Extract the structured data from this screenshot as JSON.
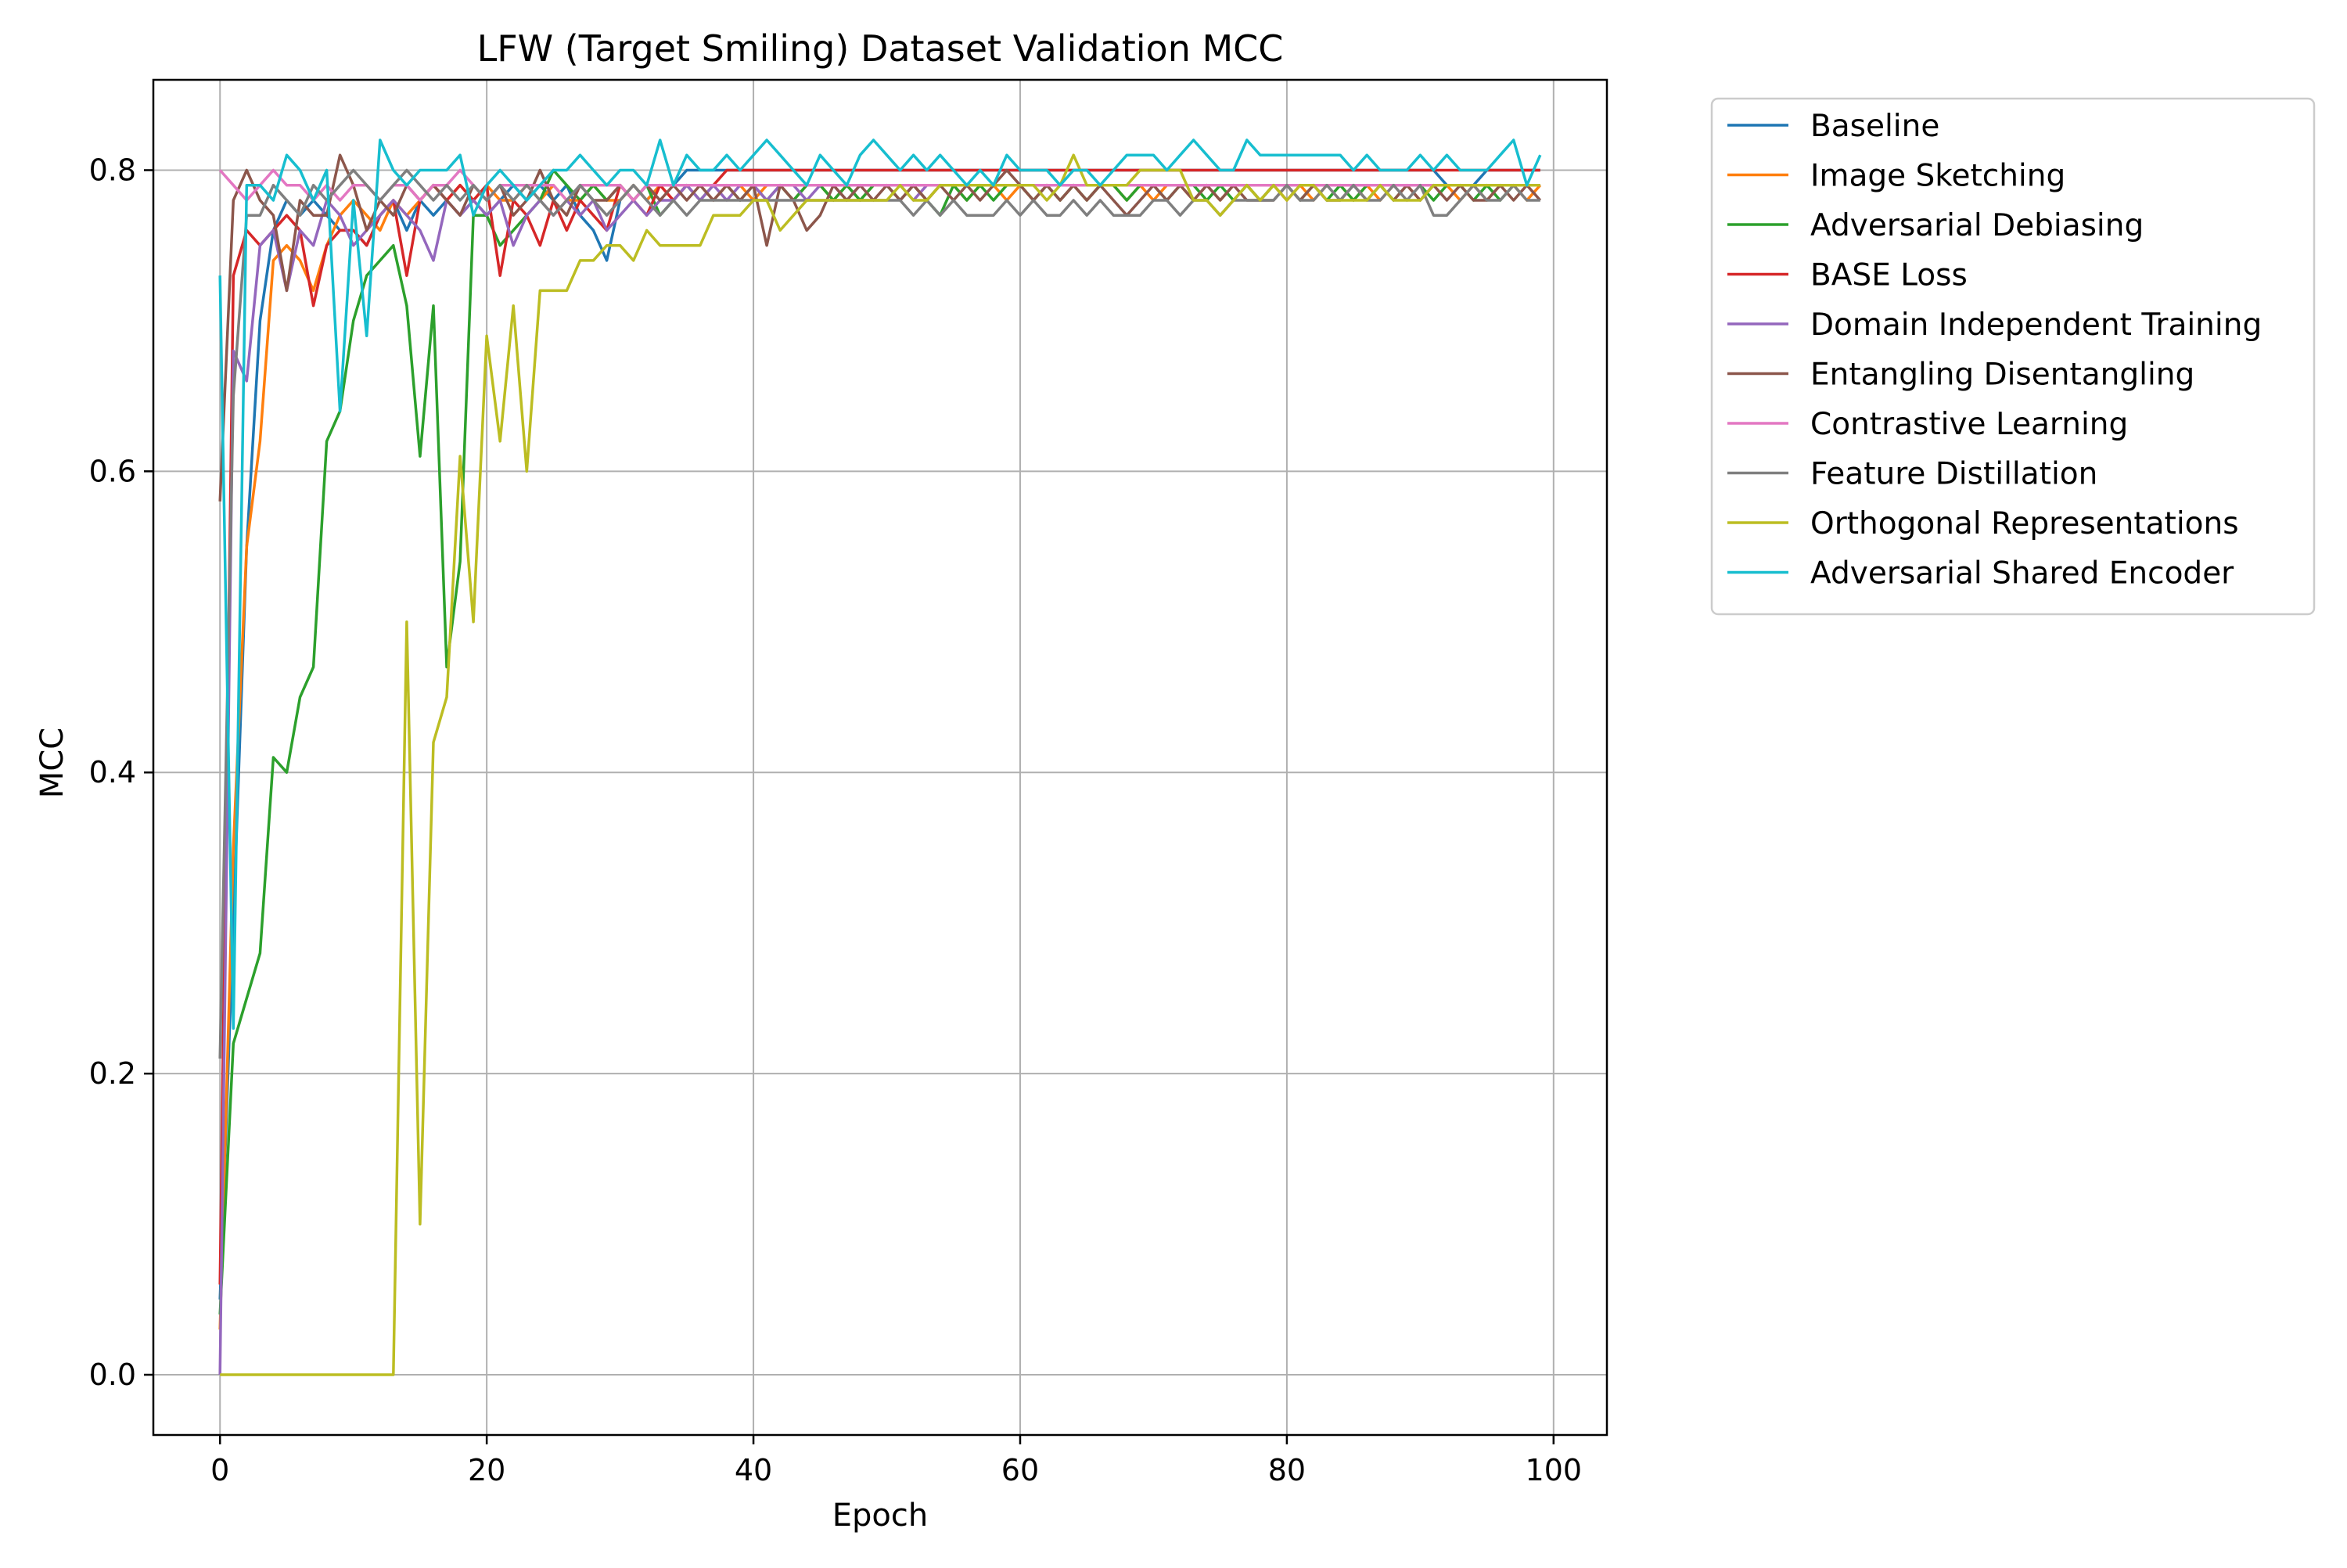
{
  "chart_data": {
    "type": "line",
    "title": "LFW (Target Smiling) Dataset Validation MCC",
    "xlabel": "Epoch",
    "ylabel": "MCC",
    "xlim": [
      -5,
      104
    ],
    "ylim": [
      -0.04,
      0.86
    ],
    "xticks": [
      0,
      20,
      40,
      60,
      80,
      100
    ],
    "yticks": [
      0.0,
      0.2,
      0.4,
      0.6,
      0.8
    ],
    "xtick_labels": [
      "0",
      "20",
      "40",
      "60",
      "80",
      "100"
    ],
    "ytick_labels": [
      "0.0",
      "0.2",
      "0.4",
      "0.6",
      "0.8"
    ],
    "grid": true,
    "legend_position": "outside-right-top",
    "x": [
      0,
      1,
      2,
      3,
      4,
      5,
      6,
      7,
      8,
      9,
      10,
      11,
      12,
      13,
      14,
      15,
      16,
      17,
      18,
      19,
      20,
      21,
      22,
      23,
      24,
      25,
      26,
      27,
      28,
      29,
      30,
      31,
      32,
      33,
      34,
      35,
      36,
      37,
      38,
      39,
      40,
      41,
      42,
      43,
      44,
      45,
      46,
      47,
      48,
      49,
      50,
      51,
      52,
      53,
      54,
      55,
      56,
      57,
      58,
      59,
      60,
      61,
      62,
      63,
      64,
      65,
      66,
      67,
      68,
      69,
      70,
      71,
      72,
      73,
      74,
      75,
      76,
      77,
      78,
      79,
      80,
      81,
      82,
      83,
      84,
      85,
      86,
      87,
      88,
      89,
      90,
      91,
      92,
      93,
      94,
      95,
      96,
      97,
      98,
      99
    ],
    "series": [
      {
        "name": "Baseline",
        "color": "#1f77b4",
        "values": [
          0.05,
          0.3,
          0.55,
          0.7,
          0.76,
          0.78,
          0.77,
          0.78,
          0.77,
          0.76,
          0.76,
          0.75,
          0.77,
          0.78,
          0.76,
          0.78,
          0.77,
          0.78,
          0.77,
          0.78,
          0.77,
          0.78,
          0.79,
          0.78,
          0.79,
          0.78,
          0.79,
          0.77,
          0.76,
          0.74,
          0.78,
          0.79,
          0.78,
          0.79,
          0.79,
          0.8,
          0.8,
          0.8,
          0.8,
          0.8,
          0.8,
          0.8,
          0.8,
          0.8,
          0.8,
          0.8,
          0.8,
          0.8,
          0.8,
          0.8,
          0.8,
          0.8,
          0.8,
          0.8,
          0.8,
          0.8,
          0.8,
          0.8,
          0.8,
          0.8,
          0.8,
          0.8,
          0.8,
          0.8,
          0.8,
          0.8,
          0.8,
          0.8,
          0.8,
          0.8,
          0.8,
          0.8,
          0.8,
          0.8,
          0.8,
          0.8,
          0.8,
          0.8,
          0.8,
          0.8,
          0.8,
          0.8,
          0.8,
          0.8,
          0.8,
          0.8,
          0.8,
          0.8,
          0.8,
          0.8,
          0.8,
          0.8,
          0.79,
          0.79,
          0.79,
          0.8,
          0.8,
          0.8,
          0.8,
          0.8
        ]
      },
      {
        "name": "Image Sketching",
        "color": "#ff7f0e",
        "values": [
          0.03,
          0.35,
          0.55,
          0.62,
          0.74,
          0.75,
          0.74,
          0.72,
          0.75,
          0.77,
          0.78,
          0.77,
          0.76,
          0.78,
          0.77,
          0.78,
          0.79,
          0.78,
          0.79,
          0.78,
          0.79,
          0.78,
          0.78,
          0.79,
          0.78,
          0.79,
          0.78,
          0.78,
          0.79,
          0.78,
          0.78,
          0.79,
          0.78,
          0.79,
          0.78,
          0.79,
          0.79,
          0.78,
          0.79,
          0.79,
          0.78,
          0.79,
          0.79,
          0.78,
          0.79,
          0.79,
          0.78,
          0.79,
          0.78,
          0.79,
          0.79,
          0.78,
          0.79,
          0.78,
          0.79,
          0.79,
          0.78,
          0.79,
          0.79,
          0.78,
          0.79,
          0.78,
          0.79,
          0.78,
          0.79,
          0.78,
          0.79,
          0.79,
          0.78,
          0.79,
          0.78,
          0.79,
          0.79,
          0.78,
          0.79,
          0.78,
          0.79,
          0.79,
          0.78,
          0.79,
          0.78,
          0.79,
          0.78,
          0.79,
          0.79,
          0.78,
          0.79,
          0.78,
          0.79,
          0.79,
          0.78,
          0.79,
          0.79,
          0.78,
          0.79,
          0.78,
          0.79,
          0.79,
          0.78,
          0.79
        ]
      },
      {
        "name": "Adversarial Debiasing",
        "color": "#2ca02c",
        "values": [
          0.04,
          0.22,
          0.25,
          0.28,
          0.41,
          0.4,
          0.45,
          0.47,
          0.62,
          0.64,
          0.7,
          0.73,
          0.74,
          0.75,
          0.71,
          0.61,
          0.71,
          0.47,
          0.54,
          0.77,
          0.77,
          0.75,
          0.76,
          0.77,
          0.78,
          0.8,
          0.79,
          0.78,
          0.79,
          0.78,
          0.79,
          0.78,
          0.79,
          0.77,
          0.78,
          0.79,
          0.78,
          0.79,
          0.79,
          0.78,
          0.79,
          0.78,
          0.79,
          0.78,
          0.79,
          0.79,
          0.78,
          0.79,
          0.78,
          0.79,
          0.79,
          0.78,
          0.79,
          0.78,
          0.77,
          0.79,
          0.78,
          0.79,
          0.78,
          0.79,
          0.79,
          0.78,
          0.79,
          0.78,
          0.79,
          0.78,
          0.79,
          0.79,
          0.78,
          0.79,
          0.79,
          0.78,
          0.79,
          0.79,
          0.78,
          0.79,
          0.78,
          0.79,
          0.78,
          0.79,
          0.79,
          0.78,
          0.79,
          0.78,
          0.79,
          0.78,
          0.79,
          0.79,
          0.78,
          0.79,
          0.79,
          0.78,
          0.79,
          0.79,
          0.78,
          0.79,
          0.78,
          0.79,
          0.79,
          0.79
        ]
      },
      {
        "name": "BASE Loss",
        "color": "#d62728",
        "values": [
          0.06,
          0.73,
          0.76,
          0.75,
          0.76,
          0.77,
          0.76,
          0.71,
          0.75,
          0.76,
          0.76,
          0.75,
          0.77,
          0.78,
          0.73,
          0.78,
          0.79,
          0.78,
          0.79,
          0.78,
          0.79,
          0.73,
          0.78,
          0.77,
          0.75,
          0.78,
          0.76,
          0.78,
          0.77,
          0.76,
          0.79,
          0.78,
          0.77,
          0.79,
          0.78,
          0.79,
          0.79,
          0.79,
          0.8,
          0.8,
          0.8,
          0.8,
          0.8,
          0.8,
          0.8,
          0.8,
          0.8,
          0.8,
          0.8,
          0.8,
          0.8,
          0.8,
          0.8,
          0.8,
          0.8,
          0.8,
          0.8,
          0.8,
          0.8,
          0.8,
          0.8,
          0.8,
          0.8,
          0.8,
          0.8,
          0.8,
          0.8,
          0.8,
          0.8,
          0.8,
          0.8,
          0.8,
          0.8,
          0.8,
          0.8,
          0.8,
          0.8,
          0.8,
          0.8,
          0.8,
          0.8,
          0.8,
          0.8,
          0.8,
          0.8,
          0.8,
          0.8,
          0.8,
          0.8,
          0.8,
          0.8,
          0.8,
          0.8,
          0.8,
          0.8,
          0.8,
          0.8,
          0.8,
          0.8,
          0.8
        ]
      },
      {
        "name": "Domain Independent Training",
        "color": "#9467bd",
        "values": [
          0.0,
          0.68,
          0.66,
          0.75,
          0.76,
          0.72,
          0.76,
          0.75,
          0.78,
          0.77,
          0.75,
          0.76,
          0.77,
          0.78,
          0.77,
          0.76,
          0.74,
          0.78,
          0.77,
          0.78,
          0.77,
          0.78,
          0.75,
          0.77,
          0.78,
          0.77,
          0.78,
          0.77,
          0.78,
          0.76,
          0.77,
          0.78,
          0.77,
          0.78,
          0.78,
          0.79,
          0.78,
          0.79,
          0.78,
          0.79,
          0.79,
          0.78,
          0.79,
          0.79,
          0.78,
          0.79,
          0.79,
          0.78,
          0.79,
          0.79,
          0.79,
          0.79,
          0.78,
          0.79,
          0.79,
          0.79,
          0.79,
          0.79,
          0.79,
          0.79,
          0.79,
          0.79,
          0.79,
          0.79,
          0.79,
          0.79,
          0.79,
          0.79,
          0.79,
          0.79,
          0.79,
          0.79,
          0.79,
          0.79,
          0.79,
          0.79,
          0.79,
          0.79,
          0.79,
          0.79,
          0.79,
          0.79,
          0.79,
          0.79,
          0.79,
          0.79,
          0.79,
          0.79,
          0.79,
          0.79,
          0.79,
          0.79,
          0.79,
          0.79,
          0.79,
          0.79,
          0.79,
          0.79,
          0.79,
          0.79
        ]
      },
      {
        "name": "Entangling Disentangling",
        "color": "#8c564b",
        "values": [
          0.58,
          0.78,
          0.8,
          0.78,
          0.77,
          0.72,
          0.78,
          0.77,
          0.77,
          0.81,
          0.79,
          0.76,
          0.78,
          0.77,
          0.79,
          0.78,
          0.79,
          0.78,
          0.77,
          0.79,
          0.78,
          0.79,
          0.77,
          0.78,
          0.8,
          0.78,
          0.77,
          0.79,
          0.78,
          0.78,
          0.79,
          0.78,
          0.79,
          0.78,
          0.79,
          0.78,
          0.79,
          0.78,
          0.79,
          0.78,
          0.79,
          0.75,
          0.79,
          0.78,
          0.76,
          0.77,
          0.79,
          0.78,
          0.79,
          0.78,
          0.79,
          0.78,
          0.79,
          0.78,
          0.79,
          0.78,
          0.79,
          0.78,
          0.79,
          0.8,
          0.79,
          0.78,
          0.79,
          0.78,
          0.79,
          0.78,
          0.79,
          0.78,
          0.77,
          0.78,
          0.79,
          0.78,
          0.79,
          0.78,
          0.79,
          0.78,
          0.79,
          0.78,
          0.78,
          0.78,
          0.79,
          0.78,
          0.79,
          0.78,
          0.78,
          0.79,
          0.78,
          0.79,
          0.78,
          0.79,
          0.78,
          0.79,
          0.78,
          0.79,
          0.78,
          0.78,
          0.79,
          0.78,
          0.79,
          0.78
        ]
      },
      {
        "name": "Contrastive Learning",
        "color": "#e377c2",
        "values": [
          0.8,
          0.79,
          0.78,
          0.79,
          0.8,
          0.79,
          0.79,
          0.78,
          0.79,
          0.78,
          0.79,
          0.79,
          0.78,
          0.79,
          0.79,
          0.78,
          0.79,
          0.79,
          0.8,
          0.79,
          0.78,
          0.79,
          0.79,
          0.79,
          0.79,
          0.79,
          0.78,
          0.79,
          0.79,
          0.79,
          0.79,
          0.78,
          0.79,
          0.79,
          0.79,
          0.79,
          0.79,
          0.79,
          0.79,
          0.79,
          0.79,
          0.79,
          0.79,
          0.79,
          0.79,
          0.79,
          0.79,
          0.79,
          0.79,
          0.79,
          0.79,
          0.79,
          0.79,
          0.79,
          0.79,
          0.79,
          0.79,
          0.79,
          0.79,
          0.79,
          0.79,
          0.79,
          0.79,
          0.79,
          0.79,
          0.79,
          0.79,
          0.79,
          0.79,
          0.79,
          0.79,
          0.79,
          0.79,
          0.79,
          0.79,
          0.79,
          0.79,
          0.79,
          0.79,
          0.79,
          0.79,
          0.79,
          0.79,
          0.79,
          0.79,
          0.79,
          0.79,
          0.79,
          0.79,
          0.79,
          0.79,
          0.79,
          0.79,
          0.79,
          0.79,
          0.79,
          0.79,
          0.79,
          0.79,
          0.79
        ]
      },
      {
        "name": "Feature Distillation",
        "color": "#7f7f7f",
        "values": [
          0.21,
          0.65,
          0.77,
          0.77,
          0.79,
          0.78,
          0.77,
          0.79,
          0.78,
          0.79,
          0.8,
          0.79,
          0.78,
          0.79,
          0.8,
          0.79,
          0.78,
          0.79,
          0.78,
          0.79,
          0.78,
          0.79,
          0.78,
          0.79,
          0.78,
          0.77,
          0.78,
          0.79,
          0.78,
          0.77,
          0.78,
          0.79,
          0.78,
          0.77,
          0.78,
          0.77,
          0.78,
          0.78,
          0.78,
          0.78,
          0.78,
          0.78,
          0.78,
          0.78,
          0.78,
          0.78,
          0.78,
          0.78,
          0.78,
          0.78,
          0.78,
          0.78,
          0.77,
          0.78,
          0.77,
          0.78,
          0.77,
          0.77,
          0.77,
          0.78,
          0.77,
          0.78,
          0.77,
          0.77,
          0.78,
          0.77,
          0.78,
          0.77,
          0.77,
          0.77,
          0.78,
          0.78,
          0.77,
          0.78,
          0.78,
          0.77,
          0.78,
          0.78,
          0.78,
          0.78,
          0.79,
          0.78,
          0.78,
          0.79,
          0.78,
          0.79,
          0.78,
          0.78,
          0.79,
          0.78,
          0.79,
          0.77,
          0.77,
          0.78,
          0.79,
          0.78,
          0.78,
          0.79,
          0.78,
          0.78
        ]
      },
      {
        "name": "Orthogonal Representations",
        "color": "#bcbd22",
        "values": [
          0.0,
          0.0,
          0.0,
          0.0,
          0.0,
          0.0,
          0.0,
          0.0,
          0.0,
          0.0,
          0.0,
          0.0,
          0.0,
          0.0,
          0.5,
          0.1,
          0.42,
          0.45,
          0.61,
          0.5,
          0.69,
          0.62,
          0.71,
          0.6,
          0.72,
          0.72,
          0.72,
          0.74,
          0.74,
          0.75,
          0.75,
          0.74,
          0.76,
          0.75,
          0.75,
          0.75,
          0.75,
          0.77,
          0.77,
          0.77,
          0.78,
          0.78,
          0.76,
          0.77,
          0.78,
          0.78,
          0.78,
          0.78,
          0.78,
          0.78,
          0.78,
          0.79,
          0.78,
          0.78,
          0.79,
          0.79,
          0.79,
          0.79,
          0.79,
          0.79,
          0.79,
          0.79,
          0.78,
          0.79,
          0.81,
          0.79,
          0.79,
          0.79,
          0.79,
          0.8,
          0.8,
          0.8,
          0.8,
          0.78,
          0.78,
          0.77,
          0.78,
          0.79,
          0.78,
          0.79,
          0.78,
          0.79,
          0.79,
          0.78,
          0.78,
          0.78,
          0.78,
          0.79,
          0.78,
          0.78,
          0.78,
          0.79,
          0.79,
          0.79,
          0.79,
          0.79,
          0.79,
          0.79,
          0.79,
          0.79
        ]
      },
      {
        "name": "Adversarial Shared Encoder",
        "color": "#17becf",
        "values": [
          0.73,
          0.23,
          0.79,
          0.79,
          0.78,
          0.81,
          0.8,
          0.78,
          0.8,
          0.64,
          0.78,
          0.69,
          0.82,
          0.8,
          0.79,
          0.8,
          0.8,
          0.8,
          0.81,
          0.77,
          0.79,
          0.8,
          0.79,
          0.78,
          0.79,
          0.8,
          0.8,
          0.81,
          0.8,
          0.79,
          0.8,
          0.8,
          0.79,
          0.82,
          0.79,
          0.81,
          0.8,
          0.8,
          0.81,
          0.8,
          0.81,
          0.82,
          0.81,
          0.8,
          0.79,
          0.81,
          0.8,
          0.79,
          0.81,
          0.82,
          0.81,
          0.8,
          0.81,
          0.8,
          0.81,
          0.8,
          0.79,
          0.8,
          0.79,
          0.81,
          0.8,
          0.8,
          0.8,
          0.79,
          0.8,
          0.8,
          0.79,
          0.8,
          0.81,
          0.81,
          0.81,
          0.8,
          0.81,
          0.82,
          0.81,
          0.8,
          0.8,
          0.82,
          0.81,
          0.81,
          0.81,
          0.81,
          0.81,
          0.81,
          0.81,
          0.8,
          0.81,
          0.8,
          0.8,
          0.8,
          0.81,
          0.8,
          0.81,
          0.8,
          0.8,
          0.8,
          0.81,
          0.82,
          0.79,
          0.81
        ]
      }
    ]
  }
}
